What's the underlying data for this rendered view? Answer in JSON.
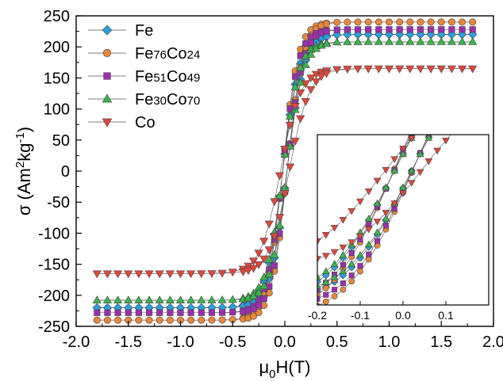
{
  "chart_data": {
    "type": "scatter",
    "title": "",
    "xlabel": {
      "pre": "μ",
      "sub": "0",
      "post": "H(T)"
    },
    "ylabel": {
      "pre": "σ (Am",
      "sup1": "2",
      "mid": "kg",
      "sup2": "-1",
      "post": ")"
    },
    "xlim": [
      -2.0,
      2.0
    ],
    "ylim": [
      -250,
      250
    ],
    "xticks": [
      -2.0,
      -1.5,
      -1.0,
      -0.5,
      0.0,
      0.5,
      1.0,
      1.5,
      2.0
    ],
    "xtick_labels": [
      "-2.0",
      "-1.5",
      "-1.0",
      "-0.5",
      "0.0",
      "0.5",
      "1.0",
      "1.5",
      "2.0"
    ],
    "yticks": [
      250,
      200,
      150,
      100,
      50,
      0,
      -50,
      -100,
      -150,
      -200,
      -250
    ],
    "ytick_labels": [
      "250",
      "200",
      "150",
      "100",
      "50",
      "0",
      "-50",
      "-100",
      "-150",
      "-200",
      "-250"
    ],
    "grid": false,
    "legend_position": "top-left",
    "series": [
      {
        "name": "Fe",
        "label_parts": [
          {
            "t": "Fe",
            "sub": false
          }
        ],
        "marker": "diamond",
        "color": "#2b9fe0",
        "ms": 220,
        "hc": 0.02,
        "h": 0.16
      },
      {
        "name": "Fe76Co24",
        "label_parts": [
          {
            "t": "Fe",
            "sub": false
          },
          {
            "t": "76",
            "sub": true
          },
          {
            "t": "Co",
            "sub": false
          },
          {
            "t": "24",
            "sub": true
          }
        ],
        "marker": "circle",
        "color": "#e8873a",
        "ms": 240,
        "hc": 0.022,
        "h": 0.15
      },
      {
        "name": "Fe51Co49",
        "label_parts": [
          {
            "t": "Fe",
            "sub": false
          },
          {
            "t": "51",
            "sub": true
          },
          {
            "t": "Co",
            "sub": false
          },
          {
            "t": "49",
            "sub": true
          }
        ],
        "marker": "square",
        "color": "#9b2fae",
        "ms": 228,
        "hc": 0.021,
        "h": 0.15
      },
      {
        "name": "Fe30Co70",
        "label_parts": [
          {
            "t": "Fe",
            "sub": false
          },
          {
            "t": "30",
            "sub": true
          },
          {
            "t": "Co",
            "sub": false
          },
          {
            "t": "70",
            "sub": true
          }
        ],
        "marker": "triangle-up",
        "color": "#3ab54a",
        "ms": 208,
        "hc": 0.02,
        "h": 0.155
      },
      {
        "name": "Co",
        "label_parts": [
          {
            "t": "Co",
            "sub": false
          }
        ],
        "marker": "triangle-down",
        "color": "#e0473a",
        "ms": 165,
        "hc": 0.042,
        "h": 0.19
      }
    ],
    "inset": {
      "xlim": [
        -0.2,
        0.2
      ],
      "ylim": [
        -215,
        58
      ],
      "xticks": [
        -0.2,
        -0.1,
        0.0,
        0.1
      ],
      "xtick_labels": [
        "-0.2",
        "-0.1",
        "0.0",
        "0.1"
      ]
    }
  }
}
